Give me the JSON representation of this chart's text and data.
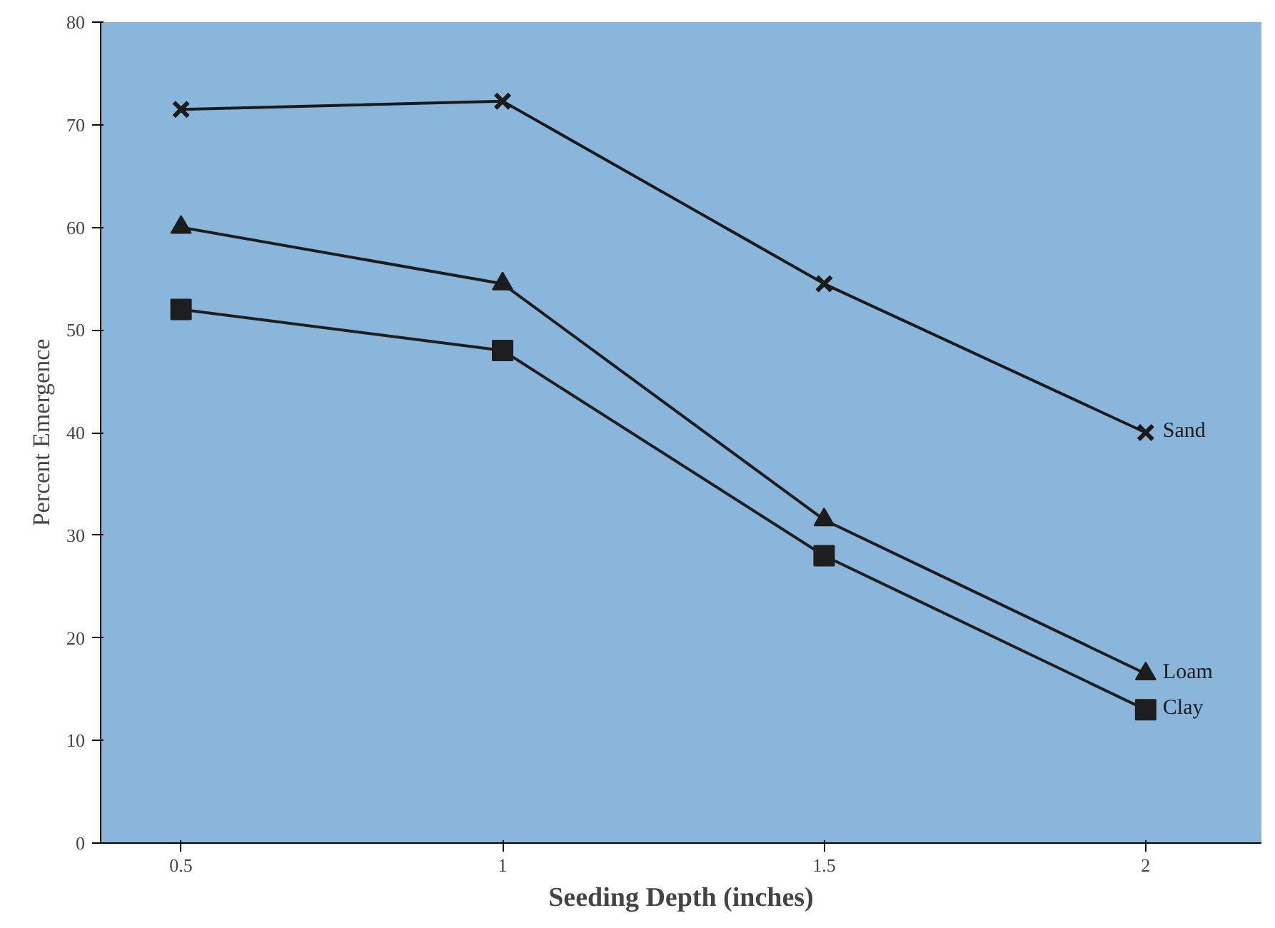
{
  "chart_data": {
    "type": "line",
    "xlabel": "Seeding Depth (inches)",
    "ylabel": "Percent Emergence",
    "x": [
      0.5,
      1,
      1.5,
      2
    ],
    "series": [
      {
        "name": "Sand",
        "color": "#1a1a1a",
        "marker": "cross",
        "values": [
          71.5,
          72.3,
          54.5,
          40
        ]
      },
      {
        "name": "Loam",
        "color": "#1c1c1c",
        "marker": "triangle",
        "values": [
          60,
          54.5,
          31.5,
          16.5
        ]
      },
      {
        "name": "Clay",
        "color": "#1e1e1e",
        "marker": "square",
        "values": [
          52,
          48,
          28,
          13
        ]
      }
    ],
    "xlim": [
      0.375,
      2.18
    ],
    "ylim": [
      0,
      80
    ],
    "xticks": [
      0.5,
      1,
      1.5,
      2
    ],
    "yticks": [
      0,
      10,
      20,
      30,
      40,
      50,
      60,
      70,
      80
    ],
    "grid": false,
    "legend": false
  }
}
